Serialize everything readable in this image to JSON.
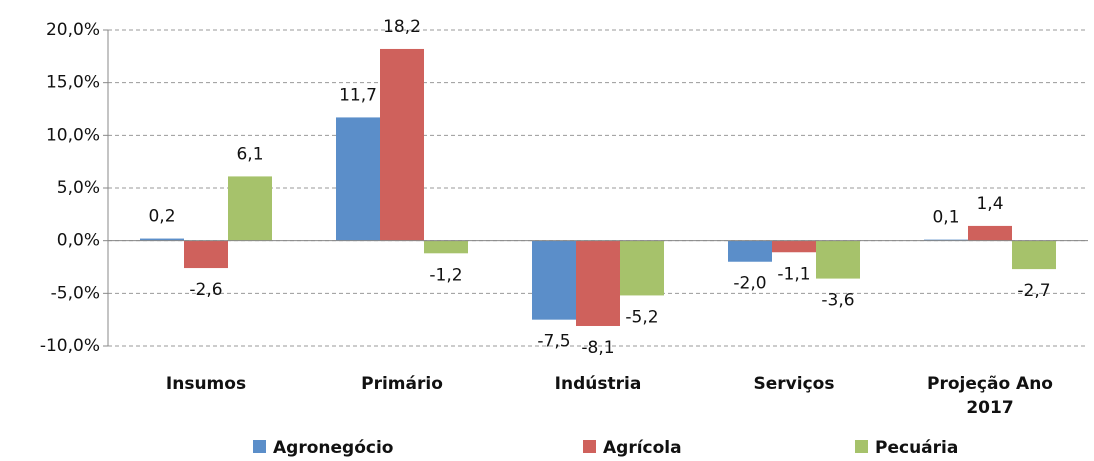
{
  "chart_data": {
    "type": "bar",
    "categories": [
      "Insumos",
      "Primário",
      "Indústria",
      "Serviços",
      "Projeção Ano 2017"
    ],
    "series": [
      {
        "name": "Agronegócio",
        "color": "#5b8ec9",
        "values": [
          0.2,
          11.7,
          -7.5,
          -2.0,
          0.1
        ],
        "value_labels": [
          "0,2",
          "11,7",
          "-7,5",
          "-2,0",
          "0,1"
        ]
      },
      {
        "name": "Agrícola",
        "color": "#cf615c",
        "values": [
          -2.6,
          18.2,
          -8.1,
          -1.1,
          1.4
        ],
        "value_labels": [
          "-2,6",
          "18,2",
          "-8,1",
          "-1,1",
          "1,4"
        ]
      },
      {
        "name": "Pecuária",
        "color": "#a6c26b",
        "values": [
          6.1,
          -1.2,
          -5.2,
          -3.6,
          -2.7
        ],
        "value_labels": [
          "6,1",
          "-1,2",
          "-5,2",
          "-3,6",
          "-2,7"
        ]
      }
    ],
    "ylim": [
      -10,
      20
    ],
    "yticks": [
      {
        "value": -10,
        "label": "-10,0%"
      },
      {
        "value": -5,
        "label": "-5,0%"
      },
      {
        "value": 0,
        "label": "0,0%"
      },
      {
        "value": 5,
        "label": "5,0%"
      },
      {
        "value": 10,
        "label": "10,0%"
      },
      {
        "value": 15,
        "label": "15,0%"
      },
      {
        "value": 20,
        "label": "20,0%"
      }
    ],
    "grid": true,
    "legend": "bottom"
  }
}
